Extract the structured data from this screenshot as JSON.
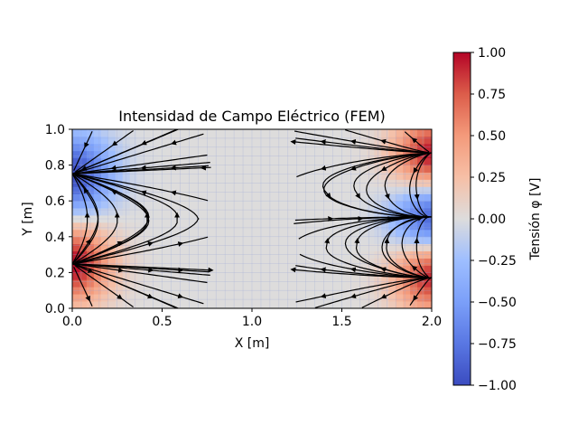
{
  "chart_data": {
    "type": "heatmap",
    "title": "Intensidad de Campo Eléctrico (FEM)",
    "xlabel": "X [m]",
    "ylabel": "Y [m]",
    "xlim": [
      0.0,
      2.0
    ],
    "ylim": [
      0.0,
      1.0
    ],
    "x_ticks": [
      "0.0",
      "0.5",
      "1.0",
      "1.5",
      "2.0"
    ],
    "y_ticks": [
      "0.0",
      "0.2",
      "0.4",
      "0.6",
      "0.8",
      "1.0"
    ],
    "colorbar": {
      "label": "Tensión φ [V]",
      "range": [
        -1.0,
        1.0
      ],
      "colormap": "coolwarm",
      "ticks": [
        "1.00",
        "0.75",
        "0.50",
        "0.25",
        "0.00",
        "−0.25",
        "−0.50",
        "−0.75",
        "−1.00"
      ]
    },
    "sources": [
      {
        "x": 0.0,
        "y": 0.75,
        "potential": -1.0
      },
      {
        "x": 0.0,
        "y": 0.25,
        "potential": 1.0
      },
      {
        "x": 2.0,
        "y": 0.85,
        "potential": 1.0
      },
      {
        "x": 2.0,
        "y": 0.5,
        "potential": -1.0
      },
      {
        "x": 2.0,
        "y": 0.2,
        "potential": 1.0
      }
    ],
    "grid": true,
    "overlay": "streamlines",
    "colors": {
      "low": "#3b4cc0",
      "mid": "#dddddd",
      "high": "#b40426",
      "streamline": "#000000"
    }
  }
}
